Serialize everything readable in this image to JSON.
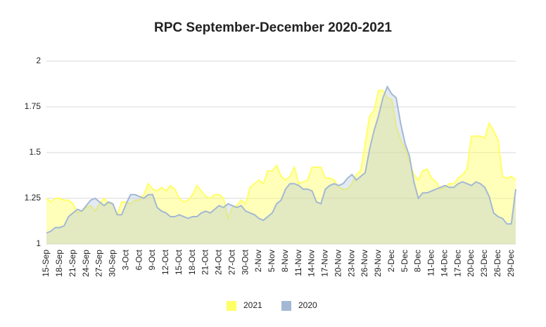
{
  "chart_data": {
    "type": "area",
    "title": "RPC September-December 2020-2021",
    "categories": [
      "15-Sep",
      null,
      null,
      "18-Sep",
      null,
      null,
      "21-Sep",
      null,
      null,
      "24-Sep",
      null,
      null,
      "27-Sep",
      null,
      null,
      "30-Sep",
      null,
      null,
      "3-Oct",
      null,
      null,
      "6-Oct",
      null,
      null,
      "9-Oct",
      null,
      null,
      "12-Oct",
      null,
      null,
      "15-Oct",
      null,
      null,
      "18-Oct",
      null,
      null,
      "21-Oct",
      null,
      null,
      "24-Oct",
      null,
      null,
      "27-Oct",
      null,
      null,
      "30-Oct",
      null,
      null,
      "2-Nov",
      null,
      null,
      "5-Nov",
      null,
      null,
      "8-Nov",
      null,
      null,
      "11-Nov",
      null,
      null,
      "14-Nov",
      null,
      null,
      "17-Nov",
      null,
      null,
      "20-Nov",
      null,
      null,
      "23-Nov",
      null,
      null,
      "26-Nov",
      null,
      null,
      "29-Nov",
      null,
      null,
      "2-Dec",
      null,
      null,
      "5-Dec",
      null,
      null,
      "8-Dec",
      null,
      null,
      "11-Dec",
      null,
      null,
      "14-Dec",
      null,
      null,
      "17-Dec",
      null,
      null,
      "20-Dec",
      null,
      null,
      "23-Dec",
      null,
      null,
      "26-Dec",
      null,
      null,
      "29-Dec",
      null
    ],
    "series": [
      {
        "name": "2021",
        "color": "#ffff66",
        "values": [
          1.25,
          1.23,
          1.25,
          1.25,
          1.24,
          1.24,
          1.22,
          1.17,
          1.18,
          1.2,
          1.21,
          1.18,
          1.22,
          1.25,
          1.22,
          1.22,
          1.16,
          1.23,
          1.23,
          1.22,
          1.24,
          1.24,
          1.27,
          1.33,
          1.3,
          1.29,
          1.31,
          1.29,
          1.32,
          1.3,
          1.25,
          1.23,
          1.24,
          1.27,
          1.32,
          1.29,
          1.26,
          1.25,
          1.27,
          1.27,
          1.25,
          1.14,
          1.2,
          1.21,
          1.24,
          1.22,
          1.31,
          1.33,
          1.35,
          1.33,
          1.4,
          1.4,
          1.43,
          1.37,
          1.35,
          1.37,
          1.42,
          1.33,
          1.34,
          1.35,
          1.42,
          1.42,
          1.42,
          1.36,
          1.36,
          1.35,
          1.31,
          1.3,
          1.3,
          1.33,
          1.38,
          1.4,
          1.55,
          1.7,
          1.73,
          1.84,
          1.84,
          1.8,
          1.79,
          1.64,
          1.57,
          1.52,
          1.45,
          1.38,
          1.35,
          1.4,
          1.41,
          1.36,
          1.34,
          1.3,
          1.31,
          1.33,
          1.33,
          1.36,
          1.38,
          1.41,
          1.59,
          1.59,
          1.59,
          1.58,
          1.66,
          1.62,
          1.57,
          1.37,
          1.36,
          1.37,
          1.35
        ]
      },
      {
        "name": "2020",
        "color": "#a3b8d4",
        "values": [
          1.06,
          1.07,
          1.09,
          1.09,
          1.1,
          1.15,
          1.17,
          1.19,
          1.18,
          1.21,
          1.24,
          1.25,
          1.23,
          1.21,
          1.23,
          1.22,
          1.16,
          1.16,
          1.22,
          1.27,
          1.27,
          1.26,
          1.25,
          1.27,
          1.27,
          1.2,
          1.18,
          1.17,
          1.15,
          1.15,
          1.16,
          1.15,
          1.14,
          1.15,
          1.15,
          1.17,
          1.18,
          1.17,
          1.19,
          1.21,
          1.2,
          1.22,
          1.21,
          1.2,
          1.21,
          1.18,
          1.17,
          1.16,
          1.14,
          1.13,
          1.15,
          1.17,
          1.22,
          1.24,
          1.3,
          1.33,
          1.33,
          1.32,
          1.3,
          1.3,
          1.29,
          1.23,
          1.22,
          1.3,
          1.32,
          1.33,
          1.32,
          1.33,
          1.36,
          1.38,
          1.35,
          1.37,
          1.39,
          1.52,
          1.62,
          1.7,
          1.8,
          1.86,
          1.82,
          1.8,
          1.66,
          1.55,
          1.48,
          1.34,
          1.25,
          1.28,
          1.28,
          1.29,
          1.3,
          1.31,
          1.32,
          1.31,
          1.31,
          1.33,
          1.34,
          1.33,
          1.32,
          1.34,
          1.33,
          1.31,
          1.26,
          1.17,
          1.15,
          1.14,
          1.11,
          1.11,
          1.3
        ]
      }
    ],
    "ylim": [
      1,
      2
    ],
    "yticks": [
      1,
      1.25,
      1.5,
      1.75,
      2
    ],
    "grid": true,
    "legend": "bottom"
  }
}
